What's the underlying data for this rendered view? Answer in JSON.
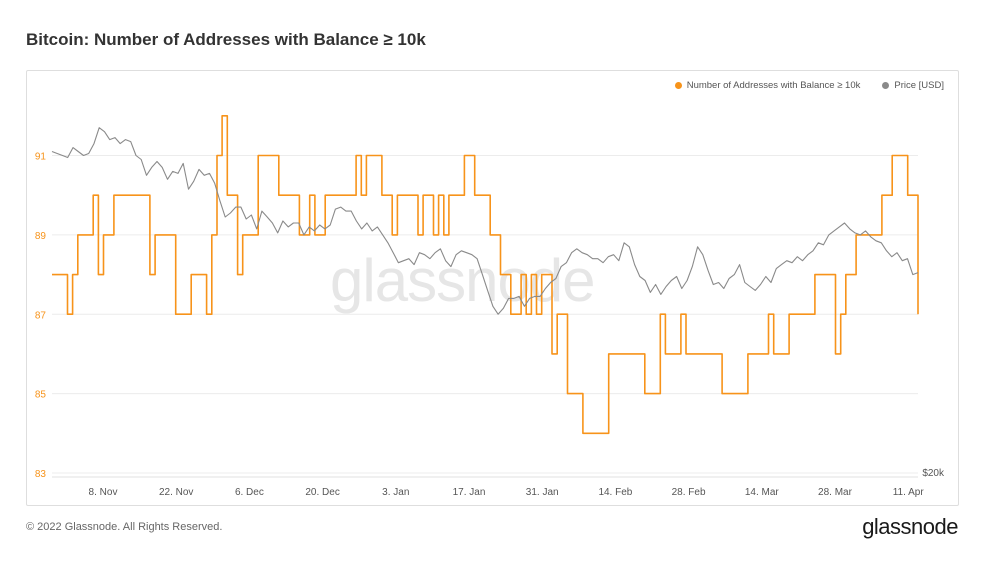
{
  "header": {
    "title": "Bitcoin: Number of Addresses with Balance ≥ 10k"
  },
  "legend": {
    "series1": "Number of Addresses with Balance ≥ 10k",
    "series2": "Price [USD]"
  },
  "watermark": "glassnode",
  "footer": {
    "copyright": "© 2022 Glassnode. All Rights Reserved.",
    "logo": "glassnode"
  },
  "colors": {
    "addresses": "#f7931a",
    "price": "#8a8a8a",
    "grid": "#ececec"
  },
  "chart_data": {
    "type": "line",
    "title": "Bitcoin: Number of Addresses with Balance ≥ 10k",
    "x_ticks": [
      "8. Nov",
      "22. Nov",
      "6. Dec",
      "20. Dec",
      "3. Jan",
      "17. Jan",
      "31. Jan",
      "14. Feb",
      "28. Feb",
      "14. Mar",
      "28. Mar",
      "11. Apr"
    ],
    "y_ticks": [
      83,
      85,
      87,
      89,
      91
    ],
    "ylim": [
      83,
      92.6
    ],
    "right_axis_label": "$20k",
    "series": [
      {
        "name": "Number of Addresses with Balance ≥ 10k",
        "axis": "left",
        "values": [
          88,
          88,
          88,
          87,
          88,
          89,
          89,
          89,
          90,
          88,
          89,
          89,
          90,
          90,
          90,
          90,
          90,
          90,
          90,
          88,
          89,
          89,
          89,
          89,
          87,
          87,
          87,
          88,
          88,
          88,
          87,
          89,
          91,
          92,
          90,
          90,
          88,
          89,
          89,
          89,
          91,
          91,
          91,
          91,
          90,
          90,
          90,
          90,
          89,
          89,
          90,
          89,
          89,
          90,
          90,
          90,
          90,
          90,
          90,
          91,
          90,
          91,
          91,
          91,
          90,
          90,
          89,
          90,
          90,
          90,
          90,
          89,
          90,
          90,
          89,
          90,
          89,
          90,
          90,
          90,
          91,
          91,
          90,
          90,
          90,
          89,
          89,
          88,
          88,
          87,
          87,
          88,
          87,
          88,
          87,
          88,
          88,
          86,
          87,
          87,
          85,
          85,
          85,
          84,
          84,
          84,
          84,
          84,
          86,
          86,
          86,
          86,
          86,
          86,
          86,
          85,
          85,
          85,
          87,
          86,
          86,
          86,
          87,
          86,
          86,
          86,
          86,
          86,
          86,
          86,
          85,
          85,
          85,
          85,
          85,
          86,
          86,
          86,
          86,
          87,
          86,
          86,
          86,
          87,
          87,
          87,
          87,
          87,
          88,
          88,
          88,
          88,
          86,
          87,
          88,
          88,
          89,
          89,
          89,
          89,
          89,
          90,
          90,
          91,
          91,
          91,
          90,
          90,
          87
        ]
      },
      {
        "name": "Price [USD]",
        "axis": "right",
        "values": [
          91.1,
          91.05,
          91.0,
          90.95,
          91.2,
          91.1,
          91.0,
          91.05,
          91.3,
          91.7,
          91.6,
          91.4,
          91.45,
          91.3,
          91.4,
          91.35,
          91.0,
          90.9,
          90.5,
          90.7,
          90.85,
          90.7,
          90.4,
          90.6,
          90.55,
          90.8,
          90.15,
          90.35,
          90.65,
          90.5,
          90.55,
          90.3,
          89.85,
          89.45,
          89.55,
          89.7,
          89.7,
          89.4,
          89.5,
          89.15,
          89.6,
          89.45,
          89.3,
          89.05,
          89.35,
          89.2,
          89.3,
          89.3,
          89.0,
          89.2,
          89.1,
          89.25,
          89.15,
          89.25,
          89.65,
          89.7,
          89.6,
          89.6,
          89.35,
          89.15,
          89.3,
          89.1,
          89.2,
          89.0,
          88.8,
          88.55,
          88.3,
          88.35,
          88.4,
          88.25,
          88.55,
          88.5,
          88.4,
          88.55,
          88.65,
          88.35,
          88.2,
          88.5,
          88.6,
          88.55,
          88.5,
          88.4,
          88.0,
          87.6,
          87.2,
          87.0,
          87.15,
          87.4,
          87.4,
          87.45,
          87.2,
          87.4,
          87.45,
          87.45,
          87.65,
          87.8,
          87.9,
          88.2,
          88.3,
          88.55,
          88.65,
          88.55,
          88.5,
          88.4,
          88.4,
          88.3,
          88.45,
          88.5,
          88.35,
          88.8,
          88.7,
          88.25,
          87.95,
          87.85,
          87.55,
          87.75,
          87.5,
          87.7,
          87.85,
          87.95,
          87.65,
          87.85,
          88.2,
          88.7,
          88.5,
          88.1,
          87.75,
          87.8,
          87.65,
          87.9,
          88.0,
          88.25,
          87.8,
          87.7,
          87.6,
          87.75,
          87.95,
          87.8,
          88.15,
          88.25,
          88.35,
          88.3,
          88.45,
          88.35,
          88.5,
          88.6,
          88.8,
          88.75,
          89.0,
          89.1,
          89.2,
          89.3,
          89.15,
          89.05,
          89.0,
          89.1,
          88.95,
          88.85,
          88.8,
          88.6,
          88.45,
          88.55,
          88.35,
          88.4,
          88.0,
          88.05
        ]
      }
    ]
  }
}
